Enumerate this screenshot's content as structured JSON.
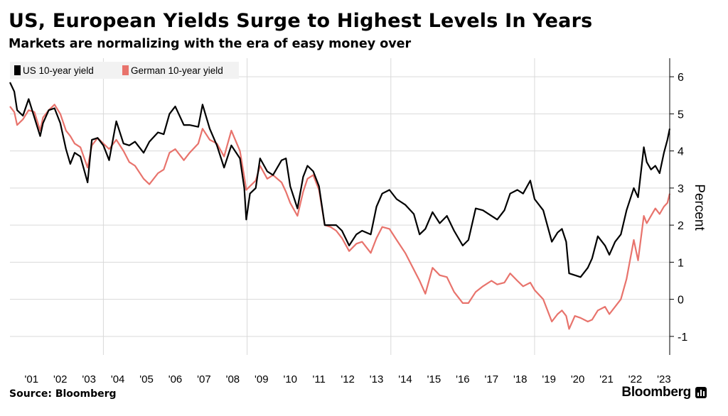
{
  "title": "US, European Yields Surge to Highest Levels In Years",
  "subtitle": "Markets are normalizing with the era of easy money over",
  "source": "Source: Bloomberg",
  "brand": "Bloomberg",
  "colors": {
    "us": "#000000",
    "german": "#e8736c",
    "grid": "#d9d9d9"
  },
  "chart_data": {
    "type": "line",
    "title": "US, European Yields Surge to Highest Levels In Years",
    "subtitle": "Markets are normalizing with the era of easy money over",
    "ylabel": "Percent",
    "xlabel": "",
    "ylim": [
      -1.5,
      6.5
    ],
    "xlim": [
      2000.75,
      2023.7
    ],
    "yticks": [
      -1,
      0,
      1,
      2,
      3,
      4,
      5,
      6
    ],
    "xticks": [
      {
        "x": 2001,
        "label": "'01"
      },
      {
        "x": 2002,
        "label": "'02"
      },
      {
        "x": 2003,
        "label": "'03"
      },
      {
        "x": 2004,
        "label": "'04"
      },
      {
        "x": 2005,
        "label": "'05"
      },
      {
        "x": 2006,
        "label": "'06"
      },
      {
        "x": 2007,
        "label": "'07"
      },
      {
        "x": 2008,
        "label": "'08"
      },
      {
        "x": 2009,
        "label": "'09"
      },
      {
        "x": 2010,
        "label": "'10"
      },
      {
        "x": 2011,
        "label": "'11"
      },
      {
        "x": 2012,
        "label": "'12"
      },
      {
        "x": 2013,
        "label": "'13"
      },
      {
        "x": 2014,
        "label": "'14"
      },
      {
        "x": 2015,
        "label": "'15"
      },
      {
        "x": 2016,
        "label": "'16"
      },
      {
        "x": 2017,
        "label": "'17"
      },
      {
        "x": 2018,
        "label": "'18"
      },
      {
        "x": 2019,
        "label": "'19"
      },
      {
        "x": 2020,
        "label": "'20"
      },
      {
        "x": 2021,
        "label": "'21"
      },
      {
        "x": 2022,
        "label": "'22"
      },
      {
        "x": 2023,
        "label": "'23"
      }
    ],
    "legend_position": "top-left",
    "grid": true,
    "series": [
      {
        "name": "US 10-year yield",
        "color": "#000000",
        "points": [
          [
            2000.75,
            5.85
          ],
          [
            2000.9,
            5.6
          ],
          [
            2001.0,
            5.1
          ],
          [
            2001.2,
            4.95
          ],
          [
            2001.4,
            5.4
          ],
          [
            2001.6,
            4.9
          ],
          [
            2001.8,
            4.4
          ],
          [
            2001.9,
            4.75
          ],
          [
            2002.1,
            5.1
          ],
          [
            2002.3,
            5.15
          ],
          [
            2002.5,
            4.75
          ],
          [
            2002.7,
            4.05
          ],
          [
            2002.85,
            3.65
          ],
          [
            2003.0,
            3.95
          ],
          [
            2003.2,
            3.85
          ],
          [
            2003.45,
            3.15
          ],
          [
            2003.6,
            4.3
          ],
          [
            2003.8,
            4.35
          ],
          [
            2004.0,
            4.15
          ],
          [
            2004.2,
            3.75
          ],
          [
            2004.45,
            4.8
          ],
          [
            2004.7,
            4.2
          ],
          [
            2004.9,
            4.15
          ],
          [
            2005.1,
            4.25
          ],
          [
            2005.4,
            3.95
          ],
          [
            2005.6,
            4.25
          ],
          [
            2005.9,
            4.5
          ],
          [
            2006.1,
            4.45
          ],
          [
            2006.3,
            5.0
          ],
          [
            2006.5,
            5.2
          ],
          [
            2006.8,
            4.7
          ],
          [
            2007.0,
            4.7
          ],
          [
            2007.3,
            4.65
          ],
          [
            2007.45,
            5.25
          ],
          [
            2007.7,
            4.6
          ],
          [
            2007.95,
            4.15
          ],
          [
            2008.2,
            3.55
          ],
          [
            2008.45,
            4.15
          ],
          [
            2008.75,
            3.8
          ],
          [
            2008.9,
            3.0
          ],
          [
            2008.97,
            2.15
          ],
          [
            2009.1,
            2.85
          ],
          [
            2009.3,
            3.0
          ],
          [
            2009.45,
            3.8
          ],
          [
            2009.7,
            3.45
          ],
          [
            2009.9,
            3.35
          ],
          [
            2010.2,
            3.75
          ],
          [
            2010.35,
            3.8
          ],
          [
            2010.5,
            3.05
          ],
          [
            2010.75,
            2.45
          ],
          [
            2010.95,
            3.3
          ],
          [
            2011.1,
            3.6
          ],
          [
            2011.3,
            3.45
          ],
          [
            2011.5,
            3.05
          ],
          [
            2011.7,
            2.0
          ],
          [
            2011.9,
            2.0
          ],
          [
            2012.1,
            2.0
          ],
          [
            2012.3,
            1.85
          ],
          [
            2012.55,
            1.45
          ],
          [
            2012.8,
            1.75
          ],
          [
            2013.0,
            1.85
          ],
          [
            2013.3,
            1.75
          ],
          [
            2013.5,
            2.5
          ],
          [
            2013.7,
            2.85
          ],
          [
            2013.95,
            2.95
          ],
          [
            2014.2,
            2.7
          ],
          [
            2014.5,
            2.55
          ],
          [
            2014.8,
            2.3
          ],
          [
            2015.0,
            1.75
          ],
          [
            2015.2,
            1.9
          ],
          [
            2015.45,
            2.35
          ],
          [
            2015.7,
            2.05
          ],
          [
            2015.95,
            2.25
          ],
          [
            2016.2,
            1.85
          ],
          [
            2016.5,
            1.45
          ],
          [
            2016.7,
            1.6
          ],
          [
            2016.95,
            2.45
          ],
          [
            2017.2,
            2.4
          ],
          [
            2017.5,
            2.25
          ],
          [
            2017.7,
            2.15
          ],
          [
            2017.95,
            2.4
          ],
          [
            2018.15,
            2.85
          ],
          [
            2018.4,
            2.95
          ],
          [
            2018.6,
            2.85
          ],
          [
            2018.85,
            3.2
          ],
          [
            2019.0,
            2.7
          ],
          [
            2019.3,
            2.4
          ],
          [
            2019.6,
            1.55
          ],
          [
            2019.8,
            1.8
          ],
          [
            2019.95,
            1.9
          ],
          [
            2020.1,
            1.55
          ],
          [
            2020.2,
            0.7
          ],
          [
            2020.4,
            0.65
          ],
          [
            2020.6,
            0.6
          ],
          [
            2020.85,
            0.85
          ],
          [
            2021.0,
            1.1
          ],
          [
            2021.2,
            1.7
          ],
          [
            2021.45,
            1.45
          ],
          [
            2021.6,
            1.2
          ],
          [
            2021.8,
            1.55
          ],
          [
            2022.0,
            1.75
          ],
          [
            2022.2,
            2.4
          ],
          [
            2022.45,
            3.0
          ],
          [
            2022.6,
            2.75
          ],
          [
            2022.8,
            4.1
          ],
          [
            2022.9,
            3.7
          ],
          [
            2023.05,
            3.5
          ],
          [
            2023.2,
            3.6
          ],
          [
            2023.35,
            3.4
          ],
          [
            2023.5,
            3.95
          ],
          [
            2023.62,
            4.3
          ],
          [
            2023.7,
            4.6
          ]
        ]
      },
      {
        "name": "German 10-year yield",
        "color": "#e8736c",
        "points": [
          [
            2000.75,
            5.2
          ],
          [
            2000.9,
            5.05
          ],
          [
            2001.0,
            4.7
          ],
          [
            2001.2,
            4.85
          ],
          [
            2001.4,
            5.1
          ],
          [
            2001.6,
            5.05
          ],
          [
            2001.8,
            4.55
          ],
          [
            2001.9,
            4.9
          ],
          [
            2002.1,
            5.1
          ],
          [
            2002.3,
            5.25
          ],
          [
            2002.5,
            5.0
          ],
          [
            2002.7,
            4.55
          ],
          [
            2002.85,
            4.4
          ],
          [
            2003.0,
            4.2
          ],
          [
            2003.2,
            4.1
          ],
          [
            2003.45,
            3.55
          ],
          [
            2003.6,
            4.15
          ],
          [
            2003.8,
            4.35
          ],
          [
            2004.0,
            4.2
          ],
          [
            2004.2,
            4.05
          ],
          [
            2004.45,
            4.3
          ],
          [
            2004.7,
            4.0
          ],
          [
            2004.9,
            3.7
          ],
          [
            2005.1,
            3.6
          ],
          [
            2005.4,
            3.25
          ],
          [
            2005.6,
            3.1
          ],
          [
            2005.9,
            3.4
          ],
          [
            2006.1,
            3.5
          ],
          [
            2006.3,
            3.95
          ],
          [
            2006.5,
            4.05
          ],
          [
            2006.8,
            3.75
          ],
          [
            2007.0,
            3.95
          ],
          [
            2007.3,
            4.2
          ],
          [
            2007.45,
            4.6
          ],
          [
            2007.7,
            4.3
          ],
          [
            2007.95,
            4.2
          ],
          [
            2008.2,
            3.85
          ],
          [
            2008.45,
            4.55
          ],
          [
            2008.75,
            4.0
          ],
          [
            2008.9,
            3.3
          ],
          [
            2008.97,
            2.95
          ],
          [
            2009.1,
            3.05
          ],
          [
            2009.3,
            3.2
          ],
          [
            2009.45,
            3.6
          ],
          [
            2009.7,
            3.25
          ],
          [
            2009.9,
            3.35
          ],
          [
            2010.2,
            3.15
          ],
          [
            2010.35,
            2.9
          ],
          [
            2010.5,
            2.6
          ],
          [
            2010.75,
            2.25
          ],
          [
            2010.95,
            2.9
          ],
          [
            2011.1,
            3.25
          ],
          [
            2011.3,
            3.35
          ],
          [
            2011.5,
            2.95
          ],
          [
            2011.7,
            2.0
          ],
          [
            2011.9,
            1.95
          ],
          [
            2012.1,
            1.85
          ],
          [
            2012.3,
            1.65
          ],
          [
            2012.55,
            1.3
          ],
          [
            2012.8,
            1.5
          ],
          [
            2013.0,
            1.55
          ],
          [
            2013.3,
            1.25
          ],
          [
            2013.5,
            1.65
          ],
          [
            2013.7,
            1.95
          ],
          [
            2013.95,
            1.9
          ],
          [
            2014.2,
            1.6
          ],
          [
            2014.5,
            1.25
          ],
          [
            2014.8,
            0.8
          ],
          [
            2015.0,
            0.5
          ],
          [
            2015.2,
            0.15
          ],
          [
            2015.45,
            0.85
          ],
          [
            2015.7,
            0.65
          ],
          [
            2015.95,
            0.6
          ],
          [
            2016.2,
            0.2
          ],
          [
            2016.5,
            -0.1
          ],
          [
            2016.7,
            -0.1
          ],
          [
            2016.95,
            0.2
          ],
          [
            2017.2,
            0.35
          ],
          [
            2017.5,
            0.5
          ],
          [
            2017.7,
            0.4
          ],
          [
            2017.95,
            0.45
          ],
          [
            2018.15,
            0.7
          ],
          [
            2018.4,
            0.5
          ],
          [
            2018.6,
            0.35
          ],
          [
            2018.85,
            0.45
          ],
          [
            2019.0,
            0.25
          ],
          [
            2019.3,
            0.0
          ],
          [
            2019.6,
            -0.6
          ],
          [
            2019.8,
            -0.4
          ],
          [
            2019.95,
            -0.3
          ],
          [
            2020.1,
            -0.45
          ],
          [
            2020.2,
            -0.8
          ],
          [
            2020.4,
            -0.45
          ],
          [
            2020.6,
            -0.5
          ],
          [
            2020.85,
            -0.6
          ],
          [
            2021.0,
            -0.55
          ],
          [
            2021.2,
            -0.3
          ],
          [
            2021.45,
            -0.2
          ],
          [
            2021.6,
            -0.4
          ],
          [
            2021.8,
            -0.2
          ],
          [
            2022.0,
            0.0
          ],
          [
            2022.2,
            0.55
          ],
          [
            2022.45,
            1.6
          ],
          [
            2022.6,
            1.05
          ],
          [
            2022.8,
            2.25
          ],
          [
            2022.9,
            2.05
          ],
          [
            2023.05,
            2.25
          ],
          [
            2023.2,
            2.45
          ],
          [
            2023.35,
            2.3
          ],
          [
            2023.5,
            2.5
          ],
          [
            2023.62,
            2.6
          ],
          [
            2023.7,
            2.85
          ]
        ]
      }
    ]
  }
}
